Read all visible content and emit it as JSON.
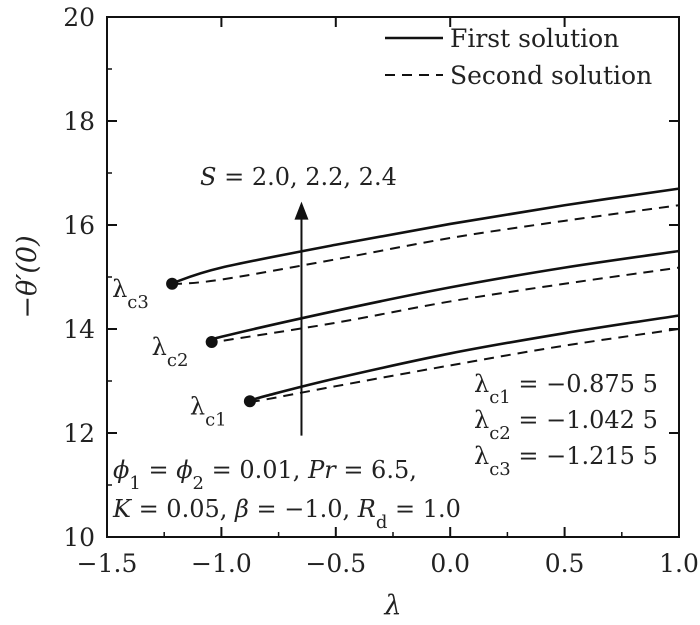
{
  "chart_data": {
    "type": "line",
    "xlabel": "λ",
    "ylabel": "−θ′(0)",
    "xlim": [
      -1.5,
      1.0
    ],
    "ylim": [
      10,
      20
    ],
    "x_ticks": [
      "−1.5",
      "−1.0",
      "−0.5",
      "0.0",
      "0.5",
      "1.0"
    ],
    "y_ticks": [
      "10",
      "12",
      "14",
      "16",
      "18",
      "20"
    ],
    "x_tick_values": [
      -1.5,
      -1.0,
      -0.5,
      0.0,
      0.5,
      1.0
    ],
    "y_tick_values": [
      10,
      12,
      14,
      16,
      18,
      20
    ],
    "grid": false,
    "legend_position": "top-right",
    "legend": [
      {
        "label": "First solution",
        "style": "solid"
      },
      {
        "label": "Second solution",
        "style": "dashed"
      }
    ],
    "series": [
      {
        "name": "First solution",
        "group": "S=2.0",
        "style": "solid",
        "x": [
          -0.8755,
          -0.8,
          -0.5,
          0.0,
          0.5,
          1.0
        ],
        "y": [
          12.62,
          12.72,
          13.05,
          13.53,
          13.92,
          14.26
        ]
      },
      {
        "name": "Second solution",
        "group": "S=2.0",
        "style": "dashed",
        "x": [
          -0.8755,
          -0.8,
          -0.5,
          0.0,
          0.5,
          1.0
        ],
        "y": [
          12.6,
          12.65,
          12.9,
          13.3,
          13.68,
          14.0
        ]
      },
      {
        "name": "First solution",
        "group": "S=2.2",
        "style": "solid",
        "x": [
          -1.0425,
          -1.0,
          -0.5,
          0.0,
          0.5,
          1.0
        ],
        "y": [
          13.76,
          13.85,
          14.35,
          14.8,
          15.18,
          15.5
        ]
      },
      {
        "name": "Second solution",
        "group": "S=2.2",
        "style": "dashed",
        "x": [
          -1.0425,
          -1.0,
          -0.5,
          0.0,
          0.5,
          1.0
        ],
        "y": [
          13.74,
          13.77,
          14.12,
          14.53,
          14.87,
          15.18
        ]
      },
      {
        "name": "First solution",
        "group": "S=2.4",
        "style": "solid",
        "x": [
          -1.2155,
          -1.0,
          -0.5,
          0.0,
          0.5,
          1.0
        ],
        "y": [
          14.88,
          15.18,
          15.62,
          16.02,
          16.38,
          16.7
        ]
      },
      {
        "name": "Second solution",
        "group": "S=2.4",
        "style": "dashed",
        "x": [
          -1.2155,
          -1.0,
          -0.5,
          0.0,
          0.5,
          1.0
        ],
        "y": [
          14.86,
          14.95,
          15.34,
          15.75,
          16.08,
          16.38
        ]
      }
    ],
    "critical_points": [
      {
        "label": "λc1",
        "x": -0.8755,
        "y": 12.61
      },
      {
        "label": "λc2",
        "x": -1.0425,
        "y": 13.75
      },
      {
        "label": "λc3",
        "x": -1.2155,
        "y": 14.87
      }
    ],
    "annotations": {
      "arrow_label": "S = 2.0, 2.2, 2.4",
      "arrow_x": -0.65,
      "arrow_from_y": 11.95,
      "arrow_to_y": 16.45,
      "critical_values": [
        "λc1 = −0.875 5",
        "λc2 = −1.042 5",
        "λc3 = −1.215 5"
      ],
      "params_line1": "ϕ1 = ϕ2 = 0.01, Pr = 6.5,",
      "params_line2": "K = 0.05, β = −1.0, Rd = 1.0"
    }
  }
}
